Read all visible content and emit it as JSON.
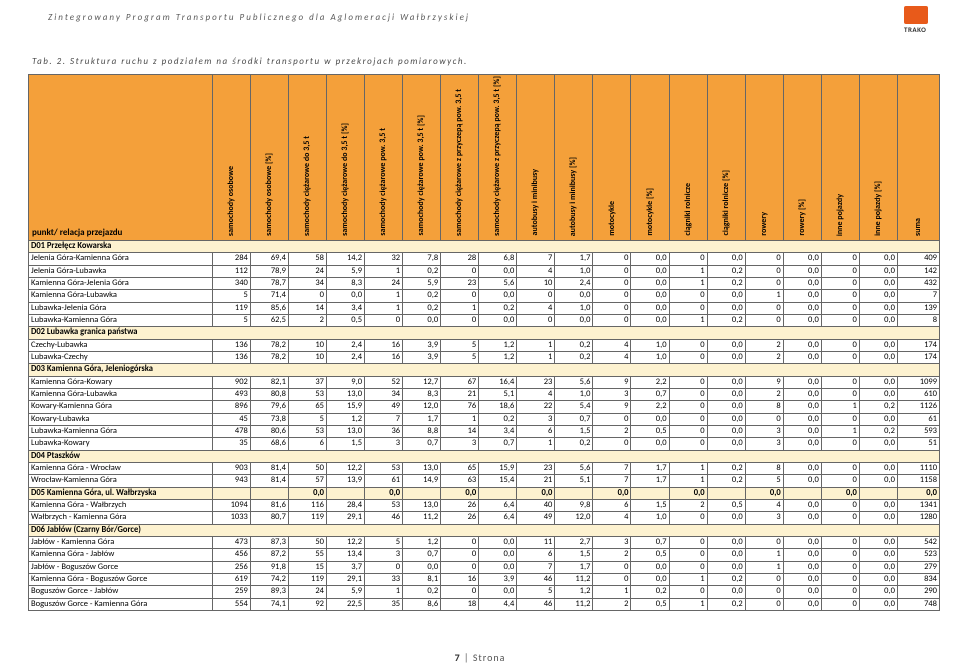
{
  "header": {
    "title": "Zintegrowany Program Transportu Publicznego dla Aglomeracji Wałbrzyskiej",
    "logo_text": "TRAKO"
  },
  "caption": "Tab. 2. Struktura ruchu z podziałem na środki transportu w przekrojach pomiarowych.",
  "columns": [
    "punkt/ relacja przejazdu",
    "samochody osobowe",
    "samochody osobowe [%]",
    "samochody ciężarowe do 3,5 t",
    "samochody ciężarowe do 3,5 t [%]",
    "samochody ciężarowe pow. 3,5 t",
    "samochody ciężarowe pow. 3,5 t [%]",
    "samochody ciężarowe z przyczepą pow. 3,5 t",
    "samochody ciężarowe z przyczepą pow. 3,5 t [%]",
    "autobusy i minibusy",
    "autobusy i minibusy [%]",
    "motocykle",
    "motocykle [%]",
    "ciągniki rolnicze",
    "ciągniki rolnicze [%]",
    "rowery",
    "rowery [%]",
    "inne pojazdy",
    "inne pojazdy [%]",
    "suma"
  ],
  "sections": [
    {
      "title": "D01 Przełęcz Kowarska",
      "rows": [
        {
          "name": "Jelenia Góra-Kamienna Góra",
          "v": [
            284,
            "69,4",
            58,
            "14,2",
            32,
            "7,8",
            28,
            "6,8",
            7,
            "1,7",
            0,
            "0,0",
            0,
            "0,0",
            0,
            "0,0",
            0,
            "0,0",
            409
          ]
        },
        {
          "name": "Jelenia Góra-Lubawka",
          "v": [
            112,
            "78,9",
            24,
            "5,9",
            1,
            "0,2",
            0,
            "0,0",
            4,
            "1,0",
            0,
            "0,0",
            1,
            "0,2",
            0,
            "0,0",
            0,
            "0,0",
            142
          ]
        },
        {
          "name": "Kamienna Góra-Jelenia Góra",
          "v": [
            340,
            "78,7",
            34,
            "8,3",
            24,
            "5,9",
            23,
            "5,6",
            10,
            "2,4",
            0,
            "0,0",
            1,
            "0,2",
            0,
            "0,0",
            0,
            "0,0",
            432
          ]
        },
        {
          "name": "Kamienna Góra-Lubawka",
          "v": [
            5,
            "71,4",
            0,
            "0,0",
            1,
            "0,2",
            0,
            "0,0",
            0,
            "0,0",
            0,
            "0,0",
            0,
            "0,0",
            1,
            "0,0",
            0,
            "0,0",
            7
          ]
        },
        {
          "name": "Lubawka-Jelenia Góra",
          "v": [
            119,
            "85,6",
            14,
            "3,4",
            1,
            "0,2",
            1,
            "0,2",
            4,
            "1,0",
            0,
            "0,0",
            0,
            "0,0",
            0,
            "0,0",
            0,
            "0,0",
            139
          ]
        },
        {
          "name": "Lubawka-Kamienna Góra",
          "v": [
            5,
            "62,5",
            2,
            "0,5",
            0,
            "0,0",
            0,
            "0,0",
            0,
            "0,0",
            0,
            "0,0",
            1,
            "0,2",
            0,
            "0,0",
            0,
            "0,0",
            8
          ]
        }
      ]
    },
    {
      "title": "D02 Lubawka granica państwa",
      "rows": [
        {
          "name": "Czechy-Lubawka",
          "v": [
            136,
            "78,2",
            10,
            "2,4",
            16,
            "3,9",
            5,
            "1,2",
            1,
            "0,2",
            4,
            "1,0",
            0,
            "0,0",
            2,
            "0,0",
            0,
            "0,0",
            174
          ]
        },
        {
          "name": "Lubawka-Czechy",
          "v": [
            136,
            "78,2",
            10,
            "2,4",
            16,
            "3,9",
            5,
            "1,2",
            1,
            "0,2",
            4,
            "1,0",
            0,
            "0,0",
            2,
            "0,0",
            0,
            "0,0",
            174
          ]
        }
      ]
    },
    {
      "title": "D03 Kamienna Góra, Jeleniogórska",
      "rows": [
        {
          "name": "Kamienna Góra-Kowary",
          "v": [
            902,
            "82,1",
            37,
            "9,0",
            52,
            "12,7",
            67,
            "16,4",
            23,
            "5,6",
            9,
            "2,2",
            0,
            "0,0",
            9,
            "0,0",
            0,
            "0,0",
            1099
          ]
        },
        {
          "name": "Kamienna Góra-Lubawka",
          "v": [
            493,
            "80,8",
            53,
            "13,0",
            34,
            "8,3",
            21,
            "5,1",
            4,
            "1,0",
            3,
            "0,7",
            0,
            "0,0",
            2,
            "0,0",
            0,
            "0,0",
            610
          ]
        },
        {
          "name": "Kowary-Kamienna Góra",
          "v": [
            896,
            "79,6",
            65,
            "15,9",
            49,
            "12,0",
            76,
            "18,6",
            22,
            "5,4",
            9,
            "2,2",
            0,
            "0,0",
            8,
            "0,0",
            1,
            "0,2",
            1126
          ]
        },
        {
          "name": "Kowary-Lubawka",
          "v": [
            45,
            "73,8",
            5,
            "1,2",
            7,
            "1,7",
            1,
            "0,2",
            3,
            "0,7",
            0,
            "0,0",
            0,
            "0,0",
            0,
            "0,0",
            0,
            "0,0",
            61
          ]
        },
        {
          "name": "Lubawka-Kamienna Góra",
          "v": [
            478,
            "80,6",
            53,
            "13,0",
            36,
            "8,8",
            14,
            "3,4",
            6,
            "1,5",
            2,
            "0,5",
            0,
            "0,0",
            3,
            "0,0",
            1,
            "0,2",
            593
          ]
        },
        {
          "name": "Lubawka-Kowary",
          "v": [
            35,
            "68,6",
            6,
            "1,5",
            3,
            "0,7",
            3,
            "0,7",
            1,
            "0,2",
            0,
            "0,0",
            0,
            "0,0",
            3,
            "0,0",
            0,
            "0,0",
            51
          ]
        }
      ]
    },
    {
      "title": "D04 Ptaszków",
      "rows": [
        {
          "name": "Kamienna Góra - Wrocław",
          "v": [
            903,
            "81,4",
            50,
            "12,2",
            53,
            "13,0",
            65,
            "15,9",
            23,
            "5,6",
            7,
            "1,7",
            1,
            "0,2",
            8,
            "0,0",
            0,
            "0,0",
            1110
          ]
        },
        {
          "name": "Wrocław-Kamienna Góra",
          "v": [
            943,
            "81,4",
            57,
            "13,9",
            61,
            "14,9",
            63,
            "15,4",
            21,
            "5,1",
            7,
            "1,7",
            1,
            "0,2",
            5,
            "0,0",
            0,
            "0,0",
            1158
          ]
        }
      ]
    },
    {
      "title": "D05 Kamienna Góra, ul. Wałbrzyska",
      "title_values": [
        "",
        "",
        "0,0",
        "",
        "0,0",
        "",
        "0,0",
        "",
        "0,0",
        "",
        "0,0",
        "",
        "0,0",
        "",
        "0,0",
        "",
        "0,0",
        "",
        "0,0"
      ],
      "rows": [
        {
          "name": "Kamienna Góra - Wałbrzych",
          "v": [
            1094,
            "81,6",
            116,
            "28,4",
            53,
            "13,0",
            26,
            "6,4",
            40,
            "9,8",
            6,
            "1,5",
            2,
            "0,5",
            4,
            "0,0",
            0,
            "0,0",
            1341
          ]
        },
        {
          "name": "Wałbrzych - Kamienna Góra",
          "v": [
            1033,
            "80,7",
            119,
            "29,1",
            46,
            "11,2",
            26,
            "6,4",
            49,
            "12,0",
            4,
            "1,0",
            0,
            "0,0",
            3,
            "0,0",
            0,
            "0,0",
            1280
          ]
        }
      ]
    },
    {
      "title": "D06 Jabłów (Czarny Bór/Gorce)",
      "rows": [
        {
          "name": "Jabłów - Kamienna Góra",
          "v": [
            473,
            "87,3",
            50,
            "12,2",
            5,
            "1,2",
            0,
            "0,0",
            11,
            "2,7",
            3,
            "0,7",
            0,
            "0,0",
            0,
            "0,0",
            0,
            "0,0",
            542
          ]
        },
        {
          "name": "Kamienna Góra - Jabłów",
          "v": [
            456,
            "87,2",
            55,
            "13,4",
            3,
            "0,7",
            0,
            "0,0",
            6,
            "1,5",
            2,
            "0,5",
            0,
            "0,0",
            1,
            "0,0",
            0,
            "0,0",
            523
          ]
        },
        {
          "name": "Jabłów - Boguszów Gorce",
          "v": [
            256,
            "91,8",
            15,
            "3,7",
            0,
            "0,0",
            0,
            "0,0",
            7,
            "1,7",
            0,
            "0,0",
            0,
            "0,0",
            1,
            "0,0",
            0,
            "0,0",
            279
          ]
        },
        {
          "name": "Kamienna Góra - Boguszów Gorce",
          "v": [
            619,
            "74,2",
            119,
            "29,1",
            33,
            "8,1",
            16,
            "3,9",
            46,
            "11,2",
            0,
            "0,0",
            1,
            "0,2",
            0,
            "0,0",
            0,
            "0,0",
            834
          ]
        },
        {
          "name": "Boguszów Gorce - Jabłów",
          "v": [
            259,
            "89,3",
            24,
            "5,9",
            1,
            "0,2",
            0,
            "0,0",
            5,
            "1,2",
            1,
            "0,2",
            0,
            "0,0",
            0,
            "0,0",
            0,
            "0,0",
            290
          ]
        },
        {
          "name": "Boguszów Gorce - Kamienna Góra",
          "v": [
            554,
            "74,1",
            92,
            "22,5",
            35,
            "8,6",
            18,
            "4,4",
            46,
            "11,2",
            2,
            "0,5",
            1,
            "0,2",
            0,
            "0,0",
            0,
            "0,0",
            748
          ]
        }
      ]
    }
  ],
  "footer": {
    "page": "7",
    "label": "Strona"
  },
  "colors": {
    "header_bg": "#f4a03a",
    "section_bg": "#fdf2d0",
    "border": "#666666",
    "logo": "#e85a1a"
  }
}
